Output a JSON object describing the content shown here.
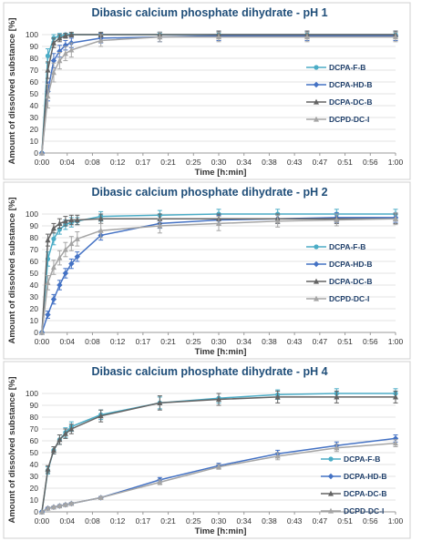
{
  "chart_data": [
    {
      "type": "line",
      "title": "Dibasic calcium phosphate dihydrate - pH 1",
      "xlabel": "Time [h:min]",
      "ylabel": "Amount of dissolved substance [%]",
      "ylim": [
        0,
        100
      ],
      "yticks": [
        0,
        10,
        20,
        30,
        40,
        50,
        60,
        70,
        80,
        90,
        100
      ],
      "xlim": [
        "0:00",
        "1:00"
      ],
      "xtick_labels": [
        "0:00",
        "0:04",
        "0:08",
        "0:12",
        "0:17",
        "0:21",
        "0:25",
        "0:30",
        "0:34",
        "0:38",
        "0:43",
        "0:47",
        "0:51",
        "0:56",
        "1:00"
      ],
      "legend_position": "right",
      "x": [
        "0:00",
        "0:01",
        "0:02",
        "0:03",
        "0:04",
        "0:05",
        "0:10",
        "0:20",
        "0:30",
        "0:45",
        "1:00"
      ],
      "series": [
        {
          "name": "DCPA-F-B",
          "color": "#4bacc6",
          "marker": "circle",
          "values": [
            0,
            82,
            97,
            99,
            100,
            100,
            100,
            100,
            100,
            100,
            100
          ],
          "err": [
            0,
            6,
            3,
            2,
            1,
            1,
            1,
            2,
            2,
            2,
            2
          ]
        },
        {
          "name": "DCPA-HD-B",
          "color": "#4472c4",
          "marker": "diamond",
          "values": [
            0,
            52,
            78,
            86,
            91,
            93,
            97,
            98,
            99,
            99,
            99
          ],
          "err": [
            0,
            8,
            6,
            5,
            4,
            4,
            4,
            4,
            4,
            4,
            4
          ]
        },
        {
          "name": "DCPA-DC-B",
          "color": "#636363",
          "marker": "triangle",
          "values": [
            0,
            70,
            93,
            97,
            99,
            100,
            100,
            100,
            100,
            100,
            100
          ],
          "err": [
            0,
            7,
            4,
            3,
            2,
            2,
            2,
            2,
            3,
            3,
            3
          ]
        },
        {
          "name": "DCPD-DC-I",
          "color": "#a5a5a5",
          "marker": "triangle",
          "values": [
            0,
            48,
            68,
            78,
            84,
            87,
            95,
            98,
            98,
            98,
            98
          ],
          "err": [
            0,
            10,
            8,
            7,
            6,
            6,
            5,
            4,
            4,
            4,
            4
          ]
        }
      ]
    },
    {
      "type": "line",
      "title": "Dibasic calcium phosphate dihydrate - pH 2",
      "xlabel": "Time [h:min]",
      "ylabel": "Amount of dissolved substance [%]",
      "ylim": [
        0,
        100
      ],
      "yticks": [
        0,
        10,
        20,
        30,
        40,
        50,
        60,
        70,
        80,
        90,
        100
      ],
      "xlim": [
        "0:00",
        "1:00"
      ],
      "xtick_labels": [
        "0:00",
        "0:04",
        "0:08",
        "0:12",
        "0:17",
        "0:21",
        "0:25",
        "0:30",
        "0:34",
        "0:38",
        "0:43",
        "0:47",
        "0:51",
        "0:56",
        "1:00"
      ],
      "legend_position": "right",
      "x": [
        "0:00",
        "0:01",
        "0:02",
        "0:03",
        "0:04",
        "0:05",
        "0:06",
        "0:10",
        "0:20",
        "0:30",
        "0:40",
        "0:50",
        "1:00"
      ],
      "series": [
        {
          "name": "DCPA-F-B",
          "color": "#4bacc6",
          "marker": "circle",
          "values": [
            0,
            62,
            79,
            87,
            91,
            93,
            94,
            98,
            99,
            100,
            100,
            100,
            100
          ],
          "err": [
            0,
            6,
            5,
            4,
            4,
            4,
            3,
            4,
            4,
            4,
            4,
            4,
            4
          ]
        },
        {
          "name": "DCPA-HD-B",
          "color": "#4472c4",
          "marker": "diamond",
          "values": [
            0,
            15,
            28,
            40,
            50,
            58,
            64,
            82,
            92,
            95,
            96,
            97,
            97
          ],
          "err": [
            0,
            3,
            4,
            4,
            4,
            4,
            4,
            4,
            4,
            4,
            4,
            4,
            4
          ]
        },
        {
          "name": "DCPA-DC-B",
          "color": "#636363",
          "marker": "triangle",
          "values": [
            0,
            78,
            88,
            92,
            94,
            95,
            95,
            96,
            96,
            96,
            96,
            96,
            96
          ],
          "err": [
            0,
            5,
            4,
            4,
            4,
            4,
            4,
            4,
            4,
            4,
            4,
            4,
            4
          ]
        },
        {
          "name": "DCPD-DC-I",
          "color": "#a5a5a5",
          "marker": "triangle",
          "values": [
            0,
            42,
            55,
            63,
            70,
            75,
            79,
            86,
            90,
            92,
            94,
            95,
            96
          ],
          "err": [
            0,
            6,
            6,
            6,
            6,
            6,
            6,
            6,
            6,
            6,
            5,
            5,
            5
          ]
        }
      ]
    },
    {
      "type": "line",
      "title": "Dibasic calcium phosphate dihydrate - pH 4",
      "xlabel": "Time [h:min]",
      "ylabel": "Amount of dissolved substance [%]",
      "ylim": [
        0,
        100
      ],
      "yticks": [
        0,
        10,
        20,
        30,
        40,
        50,
        60,
        70,
        80,
        90,
        100
      ],
      "xlim": [
        "0:00",
        "1:00"
      ],
      "xtick_labels": [
        "0:00",
        "0:04",
        "0:08",
        "0:12",
        "0:17",
        "0:21",
        "0:25",
        "0:30",
        "0:34",
        "0:38",
        "0:43",
        "0:47",
        "0:51",
        "0:56",
        "1:00"
      ],
      "legend_position": "right",
      "x": [
        "0:00",
        "0:01",
        "0:02",
        "0:03",
        "0:04",
        "0:05",
        "0:10",
        "0:20",
        "0:30",
        "0:40",
        "0:50",
        "1:00"
      ],
      "series": [
        {
          "name": "DCPA-F-B",
          "color": "#4bacc6",
          "marker": "circle",
          "values": [
            0,
            35,
            52,
            61,
            67,
            72,
            82,
            92,
            96,
            99,
            100,
            100
          ],
          "err": [
            0,
            3,
            3,
            4,
            4,
            4,
            4,
            5,
            4,
            4,
            4,
            4
          ]
        },
        {
          "name": "DCPA-HD-B",
          "color": "#4472c4",
          "marker": "diamond",
          "values": [
            0,
            3,
            4,
            5,
            6,
            7,
            12,
            27,
            39,
            49,
            56,
            62
          ],
          "err": [
            0,
            1,
            1,
            1,
            1,
            1,
            1,
            2,
            2,
            3,
            3,
            3
          ]
        },
        {
          "name": "DCPA-DC-B",
          "color": "#636363",
          "marker": "triangle",
          "values": [
            0,
            36,
            52,
            61,
            66,
            70,
            81,
            92,
            95,
            97,
            97,
            97
          ],
          "err": [
            0,
            3,
            3,
            4,
            4,
            4,
            5,
            6,
            5,
            5,
            5,
            5
          ]
        },
        {
          "name": "DCPD-DC-I",
          "color": "#a5a5a5",
          "marker": "triangle",
          "values": [
            0,
            3,
            4,
            5,
            6,
            7,
            12,
            25,
            38,
            47,
            54,
            58
          ],
          "err": [
            0,
            1,
            1,
            1,
            1,
            1,
            1,
            2,
            2,
            3,
            3,
            3
          ]
        }
      ]
    }
  ]
}
